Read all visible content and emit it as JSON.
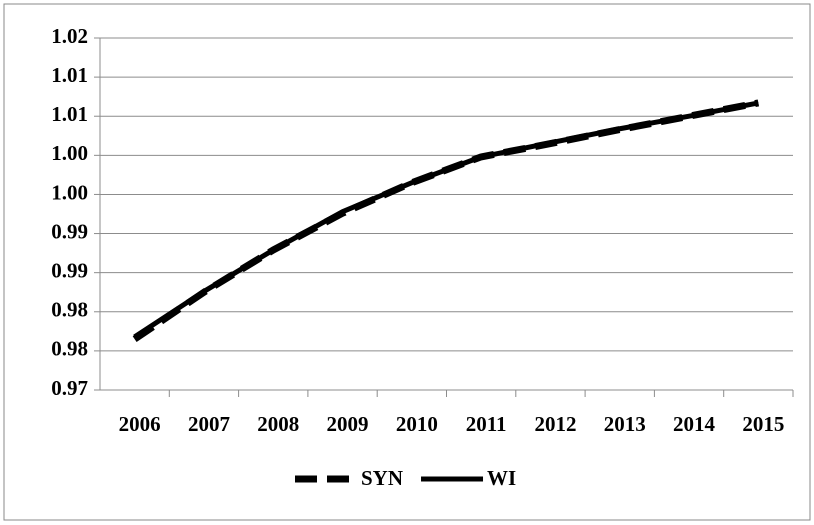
{
  "chart_data": {
    "type": "line",
    "categories": [
      "2006",
      "2007",
      "2008",
      "2009",
      "2010",
      "2011",
      "2012",
      "2013",
      "2014",
      "2015"
    ],
    "series": [
      {
        "name": "SYN",
        "color": "#000000",
        "dash": true,
        "values": [
          0.9765,
          0.9825,
          0.9879,
          0.9926,
          0.9965,
          0.9998,
          1.0015,
          1.0033,
          1.005,
          1.0067
        ]
      },
      {
        "name": "WI",
        "color": "#000000",
        "dash": false,
        "values": [
          0.9768,
          0.9826,
          0.9879,
          0.9928,
          0.9965,
          0.9998,
          1.0016,
          1.0034,
          1.005,
          1.0067
        ]
      }
    ],
    "ylim": [
      0.97,
      1.015
    ],
    "yticks": [
      {
        "value": 0.97,
        "label": "0.97"
      },
      {
        "value": 0.975,
        "label": "0.98"
      },
      {
        "value": 0.98,
        "label": "0.98"
      },
      {
        "value": 0.985,
        "label": "0.99"
      },
      {
        "value": 0.99,
        "label": "0.99"
      },
      {
        "value": 0.995,
        "label": "1.00"
      },
      {
        "value": 1.0,
        "label": "1.00"
      },
      {
        "value": 1.005,
        "label": "1.01"
      },
      {
        "value": 1.01,
        "label": "1.01"
      },
      {
        "value": 1.015,
        "label": "1.02"
      }
    ],
    "grid": true,
    "legend": "bottom"
  }
}
